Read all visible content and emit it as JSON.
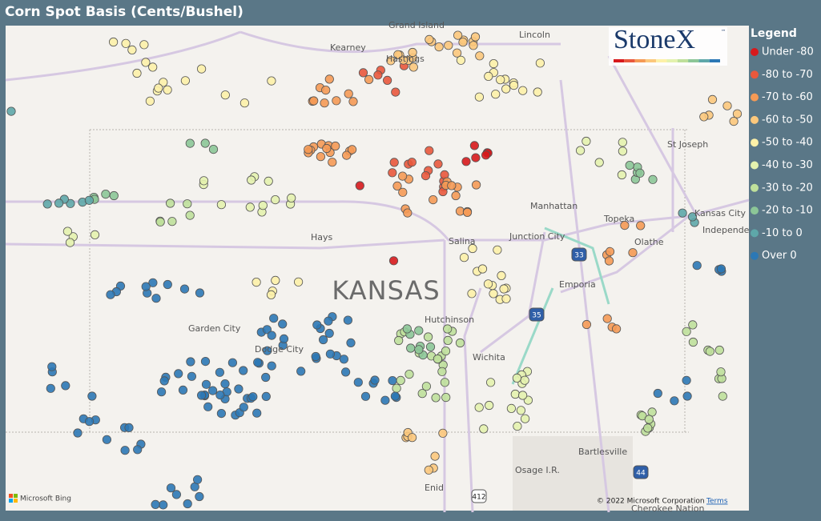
{
  "header": {
    "title": "Corn Spot Basis (Cents/Bushel)"
  },
  "logo": {
    "text": "StoneX",
    "mark": "™"
  },
  "legend": {
    "title": "Legend",
    "items": [
      {
        "name": "Under -80",
        "color": "#d7191c"
      },
      {
        "name": "-80 to -70",
        "color": "#e9583c"
      },
      {
        "name": "-70 to -60",
        "color": "#f59a55"
      },
      {
        "name": "-60 to -50",
        "color": "#fcc87c"
      },
      {
        "name": "-50 to -40",
        "color": "#fdf1a8"
      },
      {
        "name": "-40 to -30",
        "color": "#e4f2ae"
      },
      {
        "name": "-30 to -20",
        "color": "#bfe09b"
      },
      {
        "name": "-20 to -10",
        "color": "#8cc697"
      },
      {
        "name": "-10 to 0",
        "color": "#5ea7a9"
      },
      {
        "name": "Over 0",
        "color": "#2c78b5"
      }
    ]
  },
  "map": {
    "state_label": "KANSAS",
    "places": [
      "Grand Island",
      "Kearney",
      "Hastings",
      "Lincoln",
      "St Joseph",
      "Kansas City",
      "Independe",
      "Manhattan",
      "Topeka",
      "Olathe",
      "Hays",
      "Salina",
      "Junction City",
      "Emporia",
      "Garden City",
      "Dodge City",
      "Hutchinson",
      "Wichita",
      "Bartlesville",
      "Osage I.R.",
      "Enid",
      "Cherokee Nation"
    ],
    "shields": [
      "33",
      "35",
      "44",
      "412"
    ]
  },
  "footer": {
    "provider": "Microsoft Bing",
    "copyright": "© 2022 Microsoft Corporation",
    "terms": "Terms"
  }
}
